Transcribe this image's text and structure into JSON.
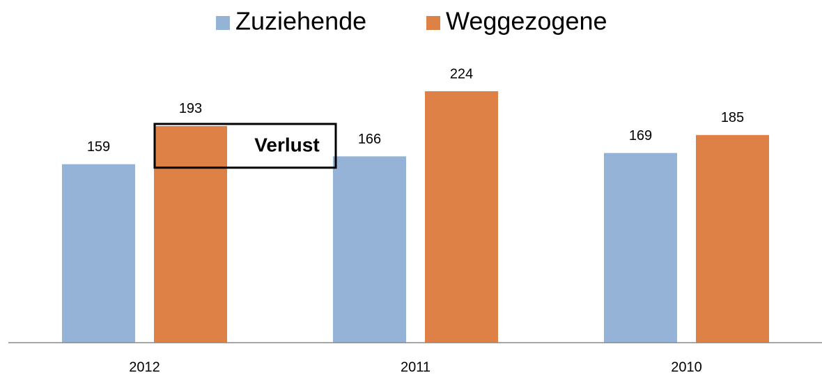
{
  "chart_data": {
    "type": "bar",
    "categories": [
      "2012",
      "2011",
      "2010"
    ],
    "series": [
      {
        "name": "Zuziehende",
        "color": "#95b3d7",
        "values": [
          159,
          166,
          169
        ]
      },
      {
        "name": "Weggezogene",
        "color": "#dd8146",
        "values": [
          193,
          224,
          185
        ]
      }
    ],
    "annotation": "Verlust",
    "legend": "top",
    "grid": false
  }
}
